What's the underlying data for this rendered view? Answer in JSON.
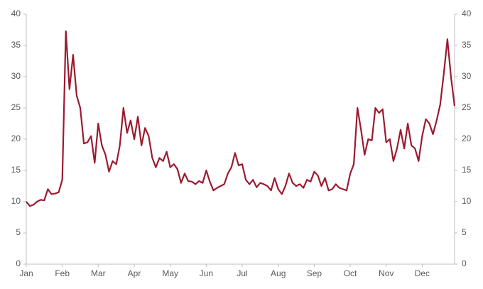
{
  "chart_data": {
    "type": "line",
    "categories": [
      "Jan",
      null,
      null,
      null,
      null,
      null,
      null,
      null,
      null,
      null,
      "Feb",
      null,
      null,
      null,
      null,
      null,
      null,
      null,
      null,
      null,
      "Mar",
      null,
      null,
      null,
      null,
      null,
      null,
      null,
      null,
      null,
      "Apr",
      null,
      null,
      null,
      null,
      null,
      null,
      null,
      null,
      null,
      "May",
      null,
      null,
      null,
      null,
      null,
      null,
      null,
      null,
      null,
      "Jun",
      null,
      null,
      null,
      null,
      null,
      null,
      null,
      null,
      null,
      "Jul",
      null,
      null,
      null,
      null,
      null,
      null,
      null,
      null,
      null,
      "Aug",
      null,
      null,
      null,
      null,
      null,
      null,
      null,
      null,
      null,
      "Sep",
      null,
      null,
      null,
      null,
      null,
      null,
      null,
      null,
      null,
      "Oct",
      null,
      null,
      null,
      null,
      null,
      null,
      null,
      null,
      null,
      "Nov",
      null,
      null,
      null,
      null,
      null,
      null,
      null,
      null,
      null,
      "Dec",
      null,
      null,
      null,
      null,
      null,
      null,
      null,
      null,
      null
    ],
    "series": [
      {
        "color": "#9b1b30",
        "values": [
          10,
          9.3,
          9.5,
          10.0,
          10.3,
          10.2,
          12.0,
          11.2,
          11.3,
          11.5,
          13.5,
          37.3,
          28,
          33.5,
          27,
          25,
          19.3,
          19.5,
          20.5,
          16.2,
          22.5,
          19,
          17.5,
          14.8,
          16.5,
          16,
          19,
          25,
          21,
          23,
          20,
          23.6,
          19,
          21.8,
          20.5,
          17,
          15.5,
          17,
          16.5,
          18,
          15.5,
          16,
          15.2,
          13,
          14.5,
          13.3,
          13.2,
          12.8,
          13.3,
          13.0,
          15,
          13.2,
          11.8,
          12.2,
          12.5,
          12.8,
          14.5,
          15.5,
          17.8,
          15.8,
          16,
          13.5,
          12.8,
          13.5,
          12.3,
          13,
          12.8,
          12.5,
          11.8,
          13.8,
          12.0,
          11.2,
          12.5,
          14.5,
          13,
          12.5,
          12.8,
          12.2,
          13.5,
          13.2,
          14.8,
          14.2,
          12.5,
          13.8,
          11.8,
          12,
          12.8,
          12.2,
          12.0,
          11.8,
          14.5,
          16,
          25,
          21.5,
          17.5,
          20,
          19.8,
          25,
          24.2,
          24.8,
          19.5,
          20,
          16.5,
          18.5,
          21.5,
          18.5,
          22.5,
          19,
          18.5,
          16.5,
          20.5,
          23.2,
          22.5,
          20.8,
          23,
          25.5,
          30.5,
          36,
          30,
          25.3
        ]
      }
    ],
    "ylim": [
      0,
      40
    ],
    "yticks": [
      0,
      5,
      10,
      15,
      20,
      25,
      30,
      35,
      40
    ],
    "y2lim": [
      0,
      40
    ],
    "y2ticks": [
      0,
      5,
      10,
      15,
      20,
      25,
      30,
      35,
      40
    ],
    "grid": false
  }
}
